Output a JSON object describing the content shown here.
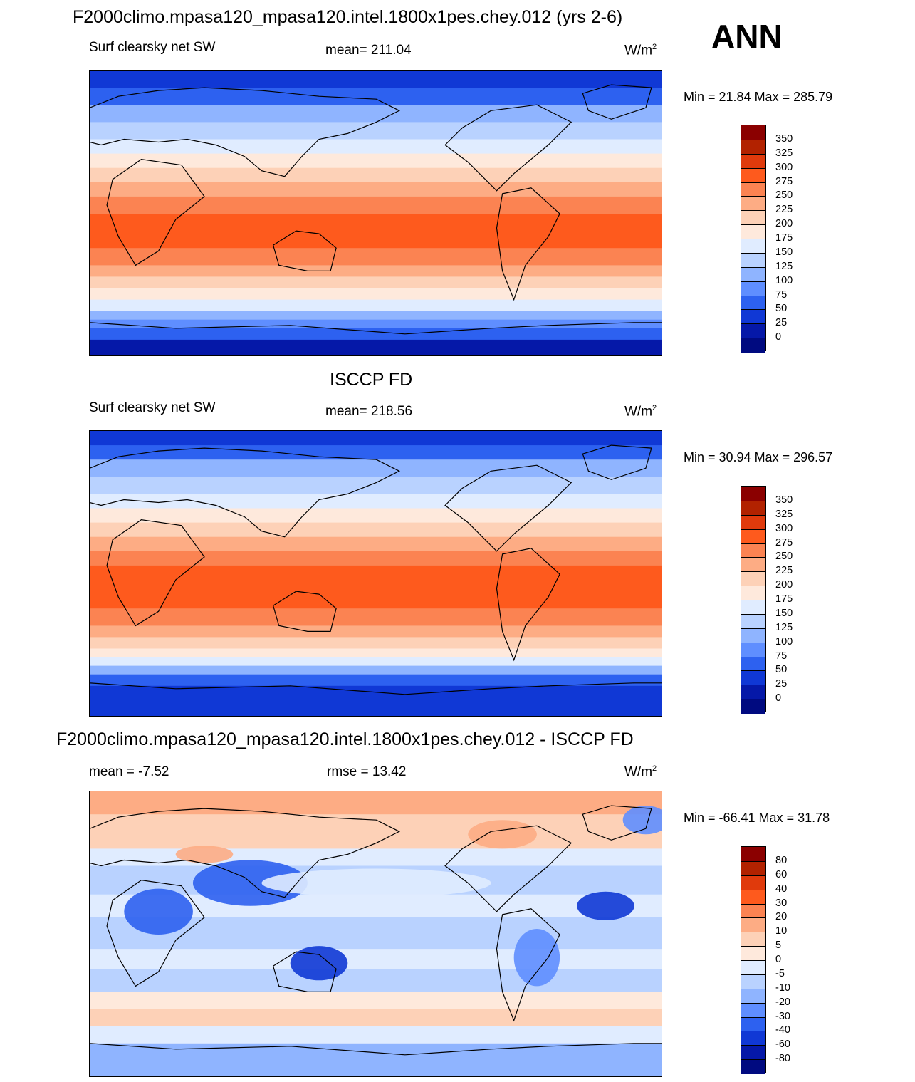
{
  "header": {
    "ann_label": "ANN"
  },
  "units": "W/m",
  "units_sup": "2",
  "panels": [
    {
      "id": "model",
      "title": "F2000climo.mpasa120_mpasa120.intel.1800x1pes.chey.012 (yrs 2-6)",
      "left_label": "Surf clearsky net SW",
      "center_label": "mean= 211.04",
      "minmax": "Min =  21.84 Max = 285.79"
    },
    {
      "id": "obs",
      "title": "ISCCP FD",
      "left_label": "Surf clearsky net SW",
      "center_label": "mean= 218.56",
      "minmax": "Min =  30.94 Max = 296.57"
    },
    {
      "id": "diff",
      "title": "F2000climo.mpasa120_mpasa120.intel.1800x1pes.chey.012 - ISCCP FD",
      "left_label": "mean =  -7.52",
      "center_label": "rmse =  13.42",
      "minmax": "Min = -66.41 Max =  31.78"
    }
  ],
  "chart_data": [
    {
      "type": "heatmap",
      "title": "F2000climo.mpasa120_mpasa120.intel.1800x1pes.chey.012 (yrs 2-6)",
      "subtitle": "Surf clearsky net SW",
      "mean": 211.04,
      "min": 21.84,
      "max": 285.79,
      "units": "W/m2",
      "xrange": [
        0,
        360
      ],
      "yrange": [
        -90,
        90
      ],
      "colorbar_levels": [
        "350",
        "325",
        "300",
        "275",
        "250",
        "225",
        "200",
        "175",
        "150",
        "125",
        "100",
        "75",
        "50",
        "25",
        "0"
      ],
      "colorbar_colors": [
        "#8b0000",
        "#b22200",
        "#e03a0c",
        "#fe5a1d",
        "#fb8352",
        "#fdac84",
        "#fdd1b7",
        "#fee9dc",
        "#e0ecff",
        "#b9d2ff",
        "#8fb4ff",
        "#5f8eff",
        "#2d61f0",
        "#1038d5",
        "#0518a8",
        "#000a80"
      ]
    },
    {
      "type": "heatmap",
      "title": "ISCCP FD",
      "subtitle": "Surf clearsky net SW",
      "mean": 218.56,
      "min": 30.94,
      "max": 296.57,
      "units": "W/m2",
      "xrange": [
        0,
        360
      ],
      "yrange": [
        -90,
        90
      ],
      "colorbar_levels": [
        "350",
        "325",
        "300",
        "275",
        "250",
        "225",
        "200",
        "175",
        "150",
        "125",
        "100",
        "75",
        "50",
        "25",
        "0"
      ],
      "colorbar_colors": [
        "#8b0000",
        "#b22200",
        "#e03a0c",
        "#fe5a1d",
        "#fb8352",
        "#fdac84",
        "#fdd1b7",
        "#fee9dc",
        "#e0ecff",
        "#b9d2ff",
        "#8fb4ff",
        "#5f8eff",
        "#2d61f0",
        "#1038d5",
        "#0518a8",
        "#000a80"
      ]
    },
    {
      "type": "heatmap",
      "title": "F2000climo.mpasa120_mpasa120.intel.1800x1pes.chey.012 - ISCCP FD",
      "mean": -7.52,
      "rmse": 13.42,
      "min": -66.41,
      "max": 31.78,
      "units": "W/m2",
      "xrange": [
        0,
        360
      ],
      "yrange": [
        -90,
        90
      ],
      "colorbar_levels": [
        "80",
        "60",
        "40",
        "30",
        "20",
        "10",
        "5",
        "0",
        "-5",
        "-10",
        "-20",
        "-30",
        "-40",
        "-60",
        "-80"
      ],
      "colorbar_colors": [
        "#8b0000",
        "#b22200",
        "#e03a0c",
        "#fe5a1d",
        "#fb8352",
        "#fdac84",
        "#fdd1b7",
        "#fee9dc",
        "#e0ecff",
        "#b9d2ff",
        "#8fb4ff",
        "#5f8eff",
        "#2d61f0",
        "#1038d5",
        "#0518a8",
        "#000a80"
      ]
    }
  ]
}
